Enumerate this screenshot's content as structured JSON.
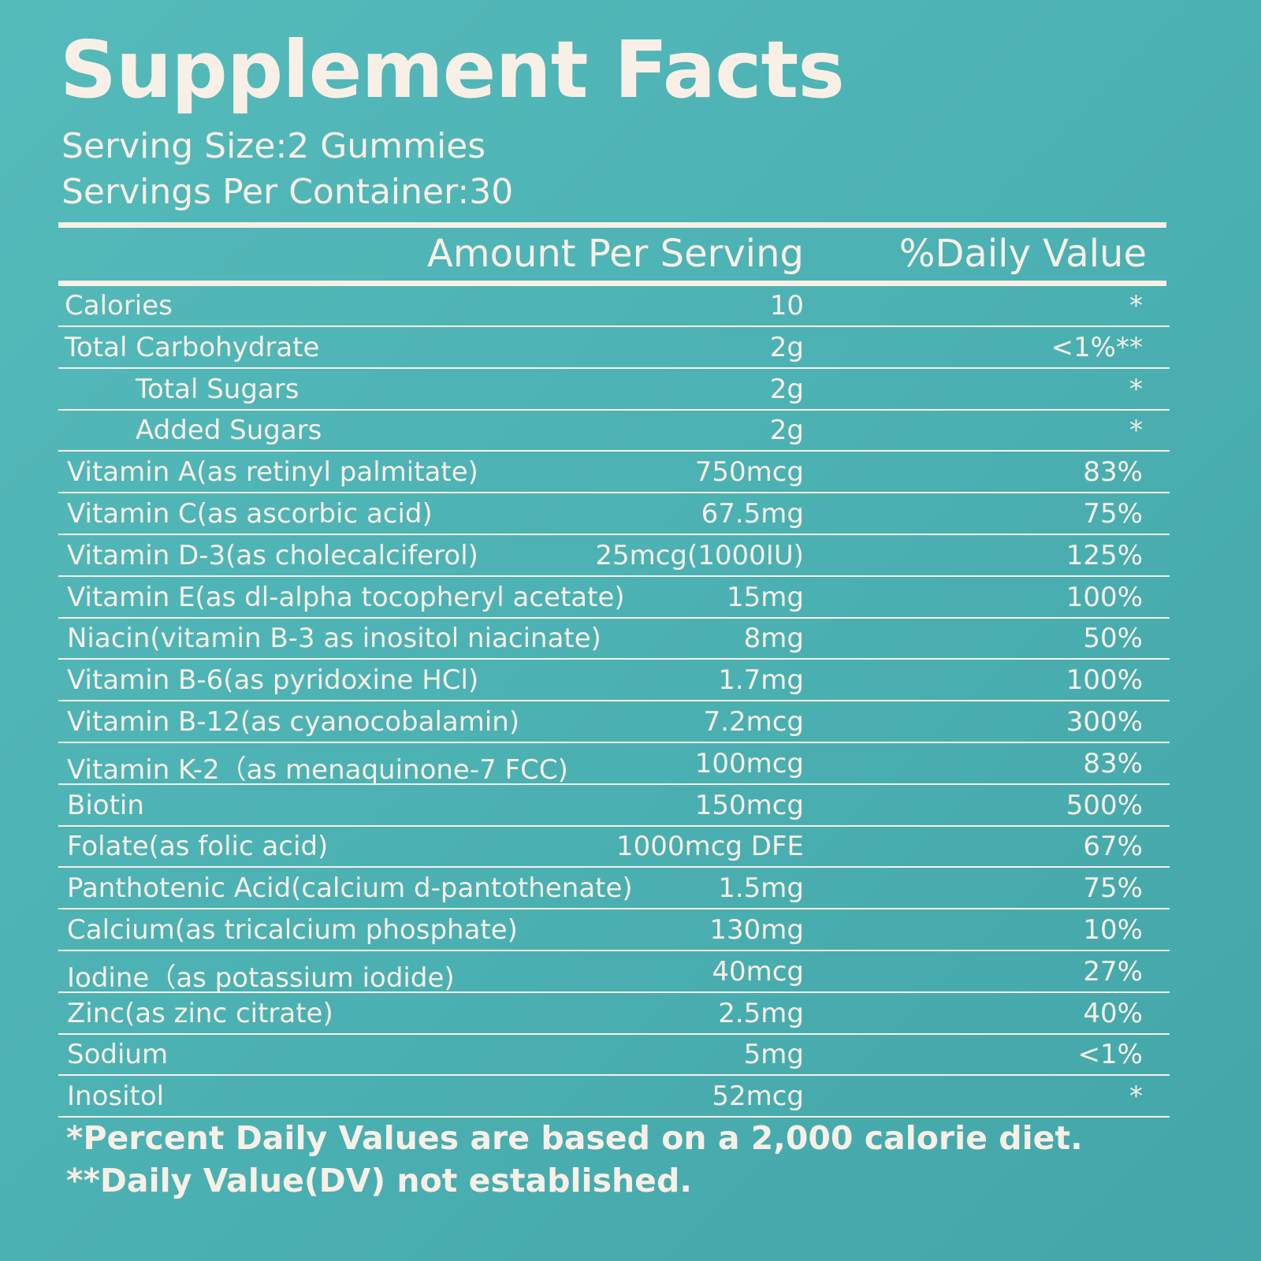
{
  "header": {
    "title": "Supplement Facts",
    "serving_size": "Serving Size:2 Gummies",
    "servings_per_container": "Servings Per Container:30"
  },
  "table": {
    "columns": [
      "Amount Per Serving",
      "%Daily Value"
    ],
    "rows": [
      [
        "Calories",
        "10",
        "*"
      ],
      [
        "Total Carbohydrate",
        "2g",
        "<1%**"
      ],
      [
        "Total Sugars",
        "2g",
        "*"
      ],
      [
        "Added Sugars",
        "2g",
        "*"
      ],
      [
        "Vitamin A(as retinyl palmitate)",
        "750mcg",
        "83%"
      ],
      [
        "Vitamin C(as ascorbic acid)",
        "67.5mg",
        "75%"
      ],
      [
        "Vitamin D-3(as cholecalciferol)",
        "25mcg(1000IU)",
        "125%"
      ],
      [
        "Vitamin E(as dl-alpha tocopheryl acetate)",
        "15mg",
        "100%"
      ],
      [
        "Niacin(vitamin B-3 as inositol niacinate)",
        "8mg",
        "50%"
      ],
      [
        "Vitamin B-6(as pyridoxine HCl)",
        "1.7mg",
        "100%"
      ],
      [
        "Vitamin B-12(as cyanocobalamin)",
        "7.2mcg",
        "300%"
      ],
      [
        "Vitamin K-2（as menaquinone-7 FCC)",
        "100mcg",
        "83%"
      ],
      [
        "Biotin",
        "150mcg",
        "500%"
      ],
      [
        "Folate(as folic acid)",
        "1000mcg DFE",
        "67%"
      ],
      [
        "Panthotenic Acid(calcium d-pantothenate)",
        "1.5mg",
        "75%"
      ],
      [
        "Calcium(as tricalcium phosphate)",
        "130mg",
        "10%"
      ],
      [
        "Iodine（as potassium iodide)",
        "40mcg",
        "27%"
      ],
      [
        "Zinc(as zinc citrate)",
        "2.5mg",
        "40%"
      ],
      [
        "Sodium",
        "5mg",
        "<1%"
      ],
      [
        "Inositol",
        "52mcg",
        "*"
      ]
    ]
  },
  "footnotes": [
    "*Percent Daily Values are based on a 2,000 calorie diet.",
    "**Daily Value(DV) not established."
  ]
}
